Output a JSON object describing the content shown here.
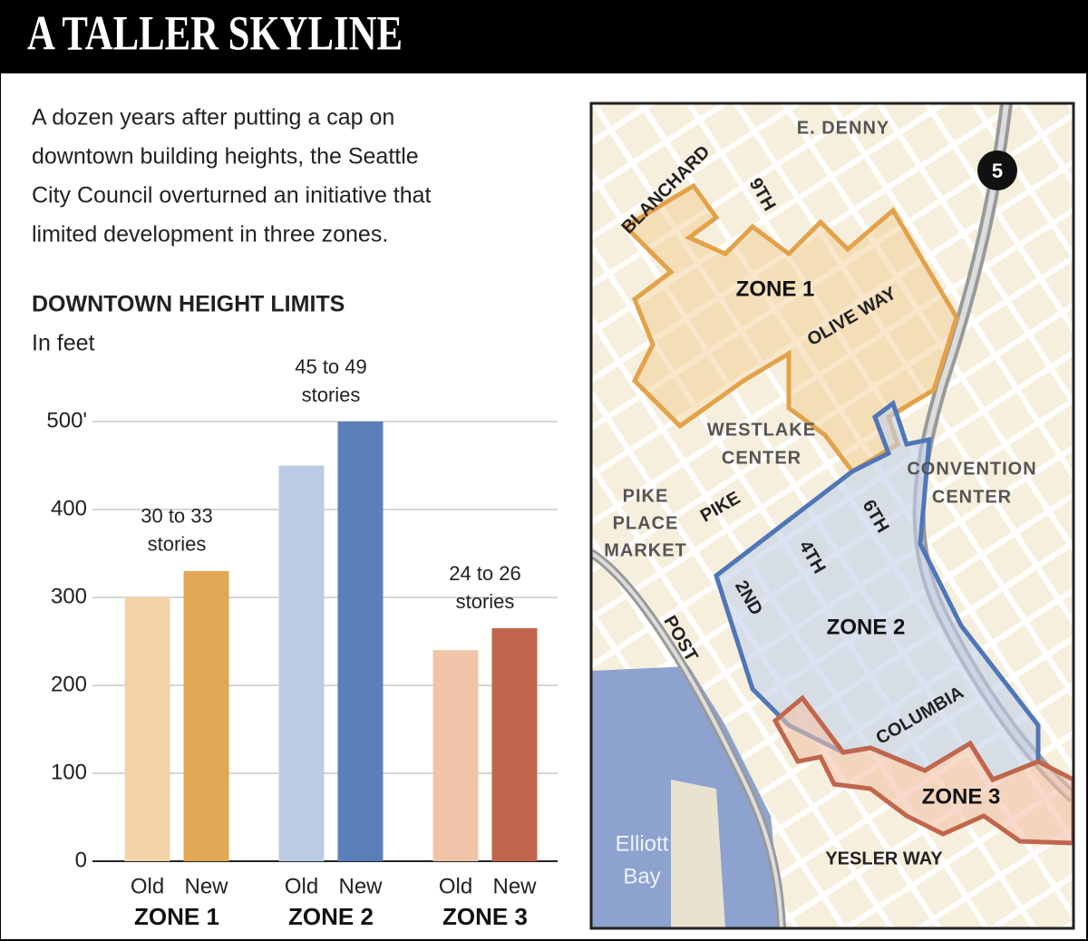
{
  "title": "A TALLER SKYLINE",
  "intro": [
    "A dozen years after putting a cap on",
    "downtown building heights, the Seattle",
    "City Council overturned an initiative that",
    "limited development in three zones."
  ],
  "chart_data": {
    "type": "bar",
    "title": "DOWNTOWN HEIGHT LIMITS",
    "subtitle": "In feet",
    "categories": [
      "Old",
      "New",
      "Old",
      "New",
      "Old",
      "New"
    ],
    "groups": [
      "ZONE 1",
      "ZONE 2",
      "ZONE 3"
    ],
    "values": [
      300,
      330,
      450,
      500,
      240,
      265
    ],
    "colors": [
      "#f3d4a8",
      "#e2a857",
      "#bccbe5",
      "#5b7fb8",
      "#efc4a8",
      "#c0664c"
    ],
    "annotations": [
      [
        "30 to 33",
        "stories"
      ],
      [
        "45 to 49",
        "stories"
      ],
      [
        "24 to 26",
        "stories"
      ]
    ],
    "ylim": [
      0,
      500
    ],
    "yticks": [
      0,
      100,
      200,
      300,
      400,
      {
        "value": 500,
        "label": "500'"
      }
    ],
    "grid": true
  },
  "map": {
    "labels": [
      "E. DENNY",
      "BLANCHARD",
      "9TH",
      "5",
      "ZONE 1",
      "OLIVE WAY",
      "WESTLAKE",
      "CENTER",
      "CONVENTION",
      "CENTER",
      "PIKE",
      "PLACE",
      "MARKET",
      "PIKE",
      "6TH",
      "4TH",
      "2ND",
      "POST",
      "ZONE 2",
      "COLUMBIA",
      "ZONE 3",
      "Elliott",
      "Bay",
      "YESLER WAY"
    ]
  }
}
